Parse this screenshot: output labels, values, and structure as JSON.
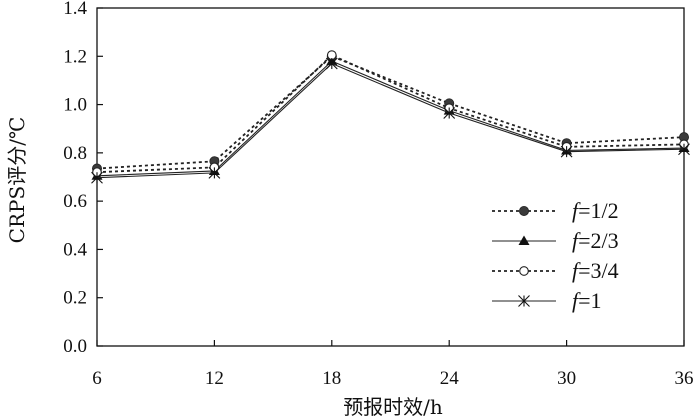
{
  "chart_data": {
    "type": "line",
    "title": "",
    "xlabel": "预报时效/h",
    "ylabel": "CRPS评分/℃",
    "x": [
      6,
      12,
      18,
      24,
      30,
      36
    ],
    "x_tick_labels": [
      "6",
      "12",
      "18",
      "24",
      "30",
      "36"
    ],
    "y_tick_labels": [
      "0.0",
      "0.2",
      "0.4",
      "0.6",
      "0.8",
      "1.0",
      "1.2",
      "1.4"
    ],
    "ylim": [
      0,
      1.4
    ],
    "y_ticks": [
      0,
      0.2,
      0.4,
      0.6,
      0.8,
      1.0,
      1.2,
      1.4
    ],
    "grid": false,
    "legend_position": "bottom-right",
    "series": [
      {
        "name": "f=1/2",
        "name_var": "f",
        "name_val": "=1/2",
        "line_style": "dotted",
        "marker": "filled-circle",
        "values": [
          0.735,
          0.765,
          1.2,
          1.005,
          0.84,
          0.865
        ]
      },
      {
        "name": "f=2/3",
        "name_var": "f",
        "name_val": "=2/3",
        "line_style": "solid",
        "marker": "filled-triangle",
        "values": [
          0.705,
          0.725,
          1.18,
          0.975,
          0.81,
          0.82
        ]
      },
      {
        "name": "f=3/4",
        "name_var": "f",
        "name_val": "=3/4",
        "line_style": "dotted",
        "marker": "open-circle",
        "values": [
          0.72,
          0.74,
          1.205,
          0.985,
          0.825,
          0.835
        ]
      },
      {
        "name": "f=1",
        "name_var": "f",
        "name_val": "=1",
        "line_style": "solid",
        "marker": "asterisk",
        "values": [
          0.697,
          0.717,
          1.17,
          0.965,
          0.805,
          0.815
        ]
      }
    ]
  }
}
